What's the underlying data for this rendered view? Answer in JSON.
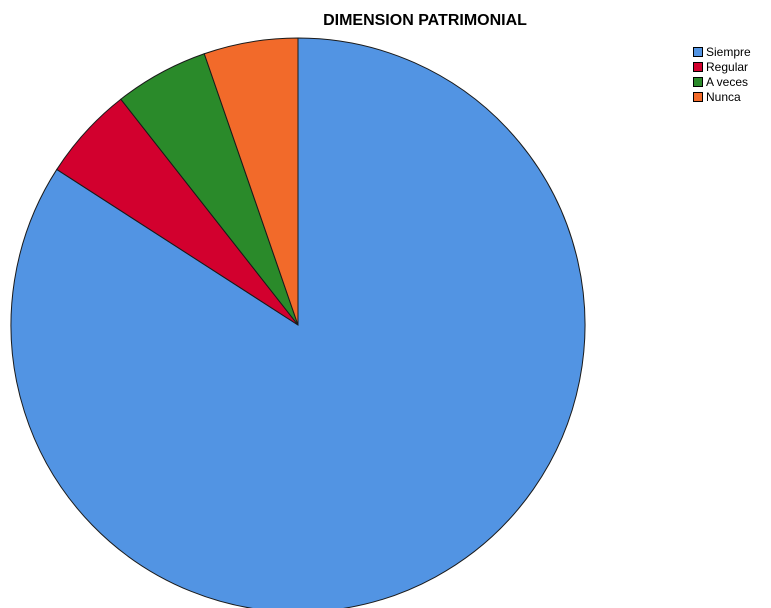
{
  "chart_data": {
    "type": "pie",
    "title": "DIMENSION PATRIMONIAL",
    "categories": [
      "Siempre",
      "Regular",
      "A veces",
      "Nunca"
    ],
    "values": [
      84.2,
      5.3,
      5.3,
      5.3
    ],
    "colors": [
      "#5294e3",
      "#d2002e",
      "#2a8a2a",
      "#f26a2a"
    ],
    "legend_position": "top-right"
  }
}
